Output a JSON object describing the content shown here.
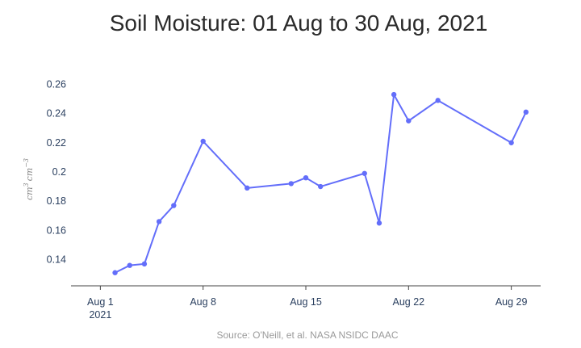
{
  "chart_data": {
    "type": "line",
    "title": "Soil Moisture: 01 Aug to 30 Aug, 2021",
    "xlabel": "",
    "ylabel": "cm^3 cm^-3",
    "ylabel_parts": {
      "base1": "cm",
      "exp1": "3",
      "base2": "cm",
      "exp2": "−3"
    },
    "x_ticks": [
      {
        "date": "2021-08-01",
        "label": "Aug 1",
        "sublabel": "2021"
      },
      {
        "date": "2021-08-08",
        "label": "Aug 8",
        "sublabel": ""
      },
      {
        "date": "2021-08-15",
        "label": "Aug 15",
        "sublabel": ""
      },
      {
        "date": "2021-08-22",
        "label": "Aug 22",
        "sublabel": ""
      },
      {
        "date": "2021-08-29",
        "label": "Aug 29",
        "sublabel": ""
      }
    ],
    "y_ticks": [
      {
        "value": 0.14,
        "label": "0.14"
      },
      {
        "value": 0.16,
        "label": "0.16"
      },
      {
        "value": 0.18,
        "label": "0.18"
      },
      {
        "value": 0.2,
        "label": "0.2"
      },
      {
        "value": 0.22,
        "label": "0.22"
      },
      {
        "value": 0.24,
        "label": "0.24"
      },
      {
        "value": 0.26,
        "label": "0.26"
      }
    ],
    "xlim": [
      "2021-07-30",
      "2021-08-31"
    ],
    "ylim": [
      0.122,
      0.268
    ],
    "grid": false,
    "series": [
      {
        "color": "#636efa",
        "points": [
          {
            "x": "2021-08-02",
            "y": 0.131
          },
          {
            "x": "2021-08-03",
            "y": 0.136
          },
          {
            "x": "2021-08-04",
            "y": 0.137
          },
          {
            "x": "2021-08-05",
            "y": 0.166
          },
          {
            "x": "2021-08-06",
            "y": 0.177
          },
          {
            "x": "2021-08-08",
            "y": 0.221
          },
          {
            "x": "2021-08-11",
            "y": 0.189
          },
          {
            "x": "2021-08-14",
            "y": 0.192
          },
          {
            "x": "2021-08-15",
            "y": 0.196
          },
          {
            "x": "2021-08-16",
            "y": 0.19
          },
          {
            "x": "2021-08-19",
            "y": 0.199
          },
          {
            "x": "2021-08-20",
            "y": 0.165
          },
          {
            "x": "2021-08-21",
            "y": 0.253
          },
          {
            "x": "2021-08-22",
            "y": 0.235
          },
          {
            "x": "2021-08-24",
            "y": 0.249
          },
          {
            "x": "2021-08-29",
            "y": 0.22
          },
          {
            "x": "2021-08-30",
            "y": 0.241
          }
        ]
      }
    ],
    "source": "Source: O'Neill, et al. NASA NSIDC DAAC"
  },
  "colors": {
    "line": "#636efa",
    "axis": "#444444",
    "tick_text": "#2a3f5f",
    "title": "#2a2a2a",
    "source_text": "#9a9a9a"
  }
}
